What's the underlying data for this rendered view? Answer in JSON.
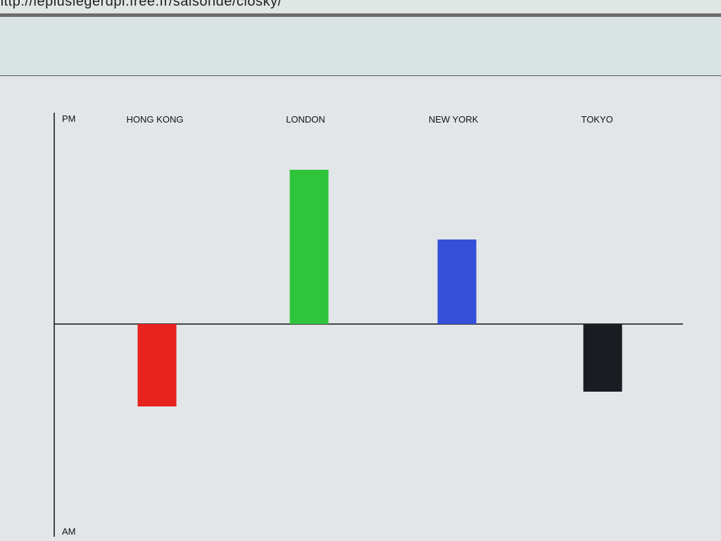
{
  "browser": {
    "url": "http://lepluslegerdpi.free.fr/saisonde/closky/"
  },
  "chart_data": {
    "type": "bar",
    "title": "",
    "xlabel": "",
    "ylabel": "",
    "y_top_label": "PM",
    "y_bottom_label": "AM",
    "ylim": [
      -1,
      1
    ],
    "grid": false,
    "categories": [
      "HONG KONG",
      "LONDON",
      "NEW YORK",
      "TOKYO"
    ],
    "values": [
      -0.39,
      0.73,
      0.4,
      -0.32
    ],
    "colors": [
      "#e8231f",
      "#2fc43c",
      "#3550d8",
      "#1b1b22"
    ]
  }
}
